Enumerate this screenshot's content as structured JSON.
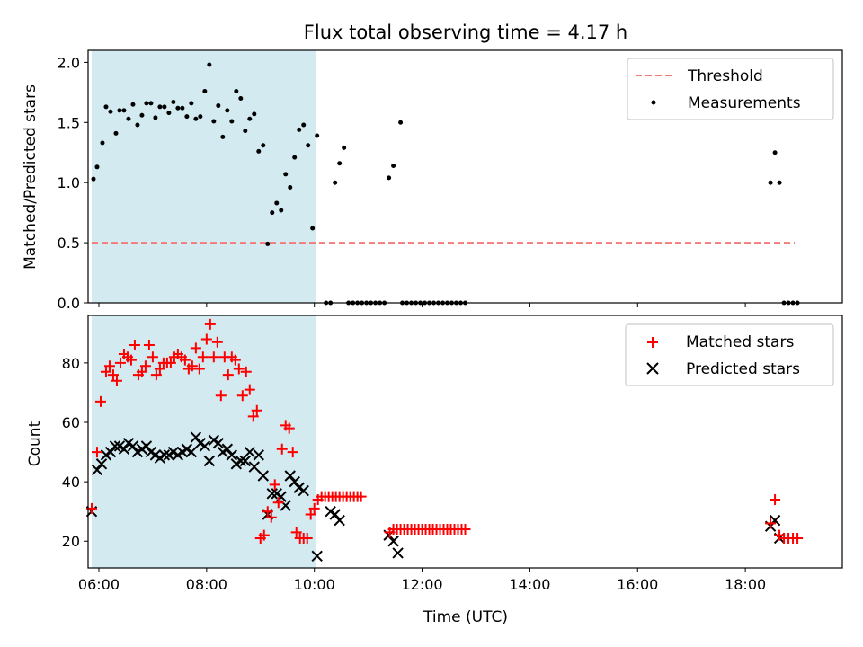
{
  "title": "Flux total observing time = 4.17 h",
  "chart_data": [
    {
      "type": "scatter",
      "ylabel": "Matched/Predicted stars",
      "xlim": [
        "05:48",
        "19:48"
      ],
      "ylim": [
        0,
        2.1
      ],
      "yticks": [
        "0.0",
        "0.5",
        "1.0",
        "1.5",
        "2.0"
      ],
      "shaded_interval": [
        "05:52",
        "10:02"
      ],
      "shade_color": "#d3eaf0",
      "threshold": {
        "name": "Threshold",
        "value": 0.5,
        "x": [
          "05:52",
          "18:55"
        ],
        "color": "#f47a7a"
      },
      "series": [
        {
          "name": "Measurements",
          "color": "#000000",
          "points": [
            [
              "05:54",
              1.03
            ],
            [
              "05:58",
              1.13
            ],
            [
              "06:04",
              1.33
            ],
            [
              "06:08",
              1.63
            ],
            [
              "06:13",
              1.59
            ],
            [
              "06:19",
              1.41
            ],
            [
              "06:23",
              1.6
            ],
            [
              "06:28",
              1.6
            ],
            [
              "06:33",
              1.53
            ],
            [
              "06:38",
              1.65
            ],
            [
              "06:43",
              1.48
            ],
            [
              "06:48",
              1.56
            ],
            [
              "06:53",
              1.66
            ],
            [
              "06:58",
              1.66
            ],
            [
              "07:03",
              1.54
            ],
            [
              "07:08",
              1.63
            ],
            [
              "07:13",
              1.63
            ],
            [
              "07:18",
              1.58
            ],
            [
              "07:23",
              1.67
            ],
            [
              "07:28",
              1.62
            ],
            [
              "07:33",
              1.62
            ],
            [
              "07:38",
              1.55
            ],
            [
              "07:43",
              1.66
            ],
            [
              "07:48",
              1.53
            ],
            [
              "07:53",
              1.55
            ],
            [
              "07:58",
              1.76
            ],
            [
              "08:03",
              1.98
            ],
            [
              "08:08",
              1.51
            ],
            [
              "08:13",
              1.64
            ],
            [
              "08:18",
              1.38
            ],
            [
              "08:23",
              1.6
            ],
            [
              "08:28",
              1.51
            ],
            [
              "08:33",
              1.76
            ],
            [
              "08:38",
              1.7
            ],
            [
              "08:43",
              1.43
            ],
            [
              "08:48",
              1.53
            ],
            [
              "08:53",
              1.57
            ],
            [
              "08:58",
              1.26
            ],
            [
              "09:03",
              1.31
            ],
            [
              "09:08",
              0.49
            ],
            [
              "09:13",
              0.75
            ],
            [
              "09:18",
              0.83
            ],
            [
              "09:23",
              0.77
            ],
            [
              "09:28",
              1.07
            ],
            [
              "09:33",
              0.96
            ],
            [
              "09:38",
              1.21
            ],
            [
              "09:43",
              1.44
            ],
            [
              "09:48",
              1.48
            ],
            [
              "09:53",
              1.31
            ],
            [
              "09:58",
              0.62
            ],
            [
              "10:03",
              1.39
            ],
            [
              "10:13",
              0.0
            ],
            [
              "10:18",
              0.0
            ],
            [
              "10:23",
              1.0
            ],
            [
              "10:28",
              1.16
            ],
            [
              "10:33",
              1.29
            ],
            [
              "10:38",
              0.0
            ],
            [
              "10:43",
              0.0
            ],
            [
              "10:48",
              0.0
            ],
            [
              "10:53",
              0.0
            ],
            [
              "10:58",
              0.0
            ],
            [
              "11:03",
              0.0
            ],
            [
              "11:08",
              0.0
            ],
            [
              "11:13",
              0.0
            ],
            [
              "11:18",
              0.0
            ],
            [
              "11:23",
              1.04
            ],
            [
              "11:28",
              1.14
            ],
            [
              "11:36",
              1.5
            ],
            [
              "11:38",
              0.0
            ],
            [
              "11:43",
              0.0
            ],
            [
              "11:48",
              0.0
            ],
            [
              "11:53",
              0.0
            ],
            [
              "11:58",
              0.0
            ],
            [
              "12:03",
              0.0
            ],
            [
              "12:08",
              0.0
            ],
            [
              "12:13",
              0.0
            ],
            [
              "12:18",
              0.0
            ],
            [
              "12:23",
              0.0
            ],
            [
              "12:28",
              0.0
            ],
            [
              "12:33",
              0.0
            ],
            [
              "12:38",
              0.0
            ],
            [
              "12:43",
              0.0
            ],
            [
              "12:48",
              0.0
            ],
            [
              "18:28",
              1.0
            ],
            [
              "18:33",
              1.25
            ],
            [
              "18:38",
              1.0
            ],
            [
              "18:43",
              0.0
            ],
            [
              "18:48",
              0.0
            ],
            [
              "18:53",
              0.0
            ],
            [
              "18:58",
              0.0
            ]
          ]
        }
      ]
    },
    {
      "type": "scatter",
      "xlabel": "Time (UTC)",
      "ylabel": "Count",
      "xlim": [
        "05:48",
        "19:48"
      ],
      "ylim": [
        11,
        96
      ],
      "yticks": [
        "20",
        "40",
        "60",
        "80"
      ],
      "xticks": [
        "06:00",
        "08:00",
        "10:00",
        "12:00",
        "14:00",
        "16:00",
        "18:00"
      ],
      "shaded_interval": [
        "05:52",
        "10:02"
      ],
      "shade_color": "#d3eaf0",
      "series": [
        {
          "name": "Matched stars",
          "marker": "plus",
          "color": "#ff0000",
          "points": [
            [
              "05:52",
              31
            ],
            [
              "05:58",
              50
            ],
            [
              "06:02",
              67
            ],
            [
              "06:08",
              77
            ],
            [
              "06:12",
              79
            ],
            [
              "06:16",
              76
            ],
            [
              "06:20",
              74
            ],
            [
              "06:24",
              80
            ],
            [
              "06:28",
              83
            ],
            [
              "06:32",
              82
            ],
            [
              "06:36",
              81
            ],
            [
              "06:40",
              86
            ],
            [
              "06:44",
              76
            ],
            [
              "06:48",
              77
            ],
            [
              "06:52",
              79
            ],
            [
              "06:56",
              86
            ],
            [
              "07:00",
              82
            ],
            [
              "07:04",
              76
            ],
            [
              "07:08",
              78
            ],
            [
              "07:12",
              80
            ],
            [
              "07:16",
              80
            ],
            [
              "07:20",
              80
            ],
            [
              "07:24",
              82
            ],
            [
              "07:28",
              83
            ],
            [
              "07:32",
              82
            ],
            [
              "07:36",
              81
            ],
            [
              "07:40",
              78
            ],
            [
              "07:44",
              79
            ],
            [
              "07:48",
              85
            ],
            [
              "07:52",
              78
            ],
            [
              "07:56",
              82
            ],
            [
              "08:00",
              88
            ],
            [
              "08:04",
              93
            ],
            [
              "08:08",
              82
            ],
            [
              "08:12",
              87
            ],
            [
              "08:16",
              69
            ],
            [
              "08:20",
              82
            ],
            [
              "08:24",
              76
            ],
            [
              "08:28",
              82
            ],
            [
              "08:32",
              81
            ],
            [
              "08:36",
              78
            ],
            [
              "08:40",
              69
            ],
            [
              "08:44",
              77
            ],
            [
              "08:48",
              71
            ],
            [
              "08:52",
              62
            ],
            [
              "08:56",
              64
            ],
            [
              "09:00",
              21
            ],
            [
              "09:04",
              22
            ],
            [
              "09:08",
              30
            ],
            [
              "09:12",
              28
            ],
            [
              "09:16",
              39
            ],
            [
              "09:20",
              33
            ],
            [
              "09:24",
              51
            ],
            [
              "09:28",
              59
            ],
            [
              "09:32",
              58
            ],
            [
              "09:36",
              50
            ],
            [
              "09:40",
              23
            ],
            [
              "09:44",
              21
            ],
            [
              "09:48",
              21
            ],
            [
              "09:52",
              21
            ],
            [
              "09:56",
              29
            ],
            [
              "10:00",
              31
            ],
            [
              "10:04",
              34
            ],
            [
              "10:08",
              35
            ],
            [
              "10:12",
              35
            ],
            [
              "10:16",
              35
            ],
            [
              "10:20",
              35
            ],
            [
              "10:24",
              35
            ],
            [
              "10:28",
              35
            ],
            [
              "10:32",
              35
            ],
            [
              "10:36",
              35
            ],
            [
              "10:40",
              35
            ],
            [
              "10:44",
              35
            ],
            [
              "10:48",
              35
            ],
            [
              "10:52",
              35
            ],
            [
              "11:24",
              23
            ],
            [
              "11:28",
              24
            ],
            [
              "11:32",
              24
            ],
            [
              "11:36",
              24
            ],
            [
              "11:40",
              24
            ],
            [
              "11:44",
              24
            ],
            [
              "11:48",
              24
            ],
            [
              "11:52",
              24
            ],
            [
              "11:56",
              24
            ],
            [
              "12:00",
              24
            ],
            [
              "12:04",
              24
            ],
            [
              "12:08",
              24
            ],
            [
              "12:12",
              24
            ],
            [
              "12:16",
              24
            ],
            [
              "12:20",
              24
            ],
            [
              "12:24",
              24
            ],
            [
              "12:28",
              24
            ],
            [
              "12:32",
              24
            ],
            [
              "12:36",
              24
            ],
            [
              "12:40",
              24
            ],
            [
              "12:44",
              24
            ],
            [
              "12:48",
              24
            ],
            [
              "18:28",
              26
            ],
            [
              "18:33",
              34
            ],
            [
              "18:38",
              22
            ],
            [
              "18:43",
              21
            ],
            [
              "18:48",
              21
            ],
            [
              "18:53",
              21
            ],
            [
              "18:58",
              21
            ]
          ]
        },
        {
          "name": "Predicted stars",
          "marker": "x",
          "color": "#000000",
          "points": [
            [
              "05:52",
              30
            ],
            [
              "05:58",
              44
            ],
            [
              "06:03",
              46
            ],
            [
              "06:08",
              49
            ],
            [
              "06:13",
              50
            ],
            [
              "06:18",
              52
            ],
            [
              "06:23",
              52
            ],
            [
              "06:28",
              51
            ],
            [
              "06:33",
              53
            ],
            [
              "06:38",
              52
            ],
            [
              "06:43",
              50
            ],
            [
              "06:48",
              51
            ],
            [
              "06:53",
              52
            ],
            [
              "06:58",
              50
            ],
            [
              "07:03",
              49
            ],
            [
              "07:08",
              48
            ],
            [
              "07:13",
              49
            ],
            [
              "07:18",
              49
            ],
            [
              "07:23",
              50
            ],
            [
              "07:28",
              49
            ],
            [
              "07:33",
              50
            ],
            [
              "07:38",
              51
            ],
            [
              "07:43",
              50
            ],
            [
              "07:48",
              55
            ],
            [
              "07:53",
              53
            ],
            [
              "07:58",
              52
            ],
            [
              "08:03",
              47
            ],
            [
              "08:08",
              54
            ],
            [
              "08:13",
              53
            ],
            [
              "08:18",
              50
            ],
            [
              "08:23",
              51
            ],
            [
              "08:28",
              49
            ],
            [
              "08:33",
              46
            ],
            [
              "08:38",
              47
            ],
            [
              "08:43",
              47
            ],
            [
              "08:48",
              50
            ],
            [
              "08:53",
              45
            ],
            [
              "08:58",
              49
            ],
            [
              "09:03",
              42
            ],
            [
              "09:08",
              29
            ],
            [
              "09:13",
              36
            ],
            [
              "09:18",
              36
            ],
            [
              "09:23",
              35
            ],
            [
              "09:28",
              32
            ],
            [
              "09:33",
              42
            ],
            [
              "09:38",
              40
            ],
            [
              "09:43",
              38
            ],
            [
              "09:48",
              37
            ],
            [
              "10:03",
              15
            ],
            [
              "10:18",
              30
            ],
            [
              "10:23",
              29
            ],
            [
              "10:28",
              27
            ],
            [
              "11:23",
              22
            ],
            [
              "11:28",
              20
            ],
            [
              "11:33",
              16
            ],
            [
              "18:28",
              25
            ],
            [
              "18:33",
              27
            ],
            [
              "18:38",
              21
            ]
          ]
        }
      ]
    }
  ]
}
